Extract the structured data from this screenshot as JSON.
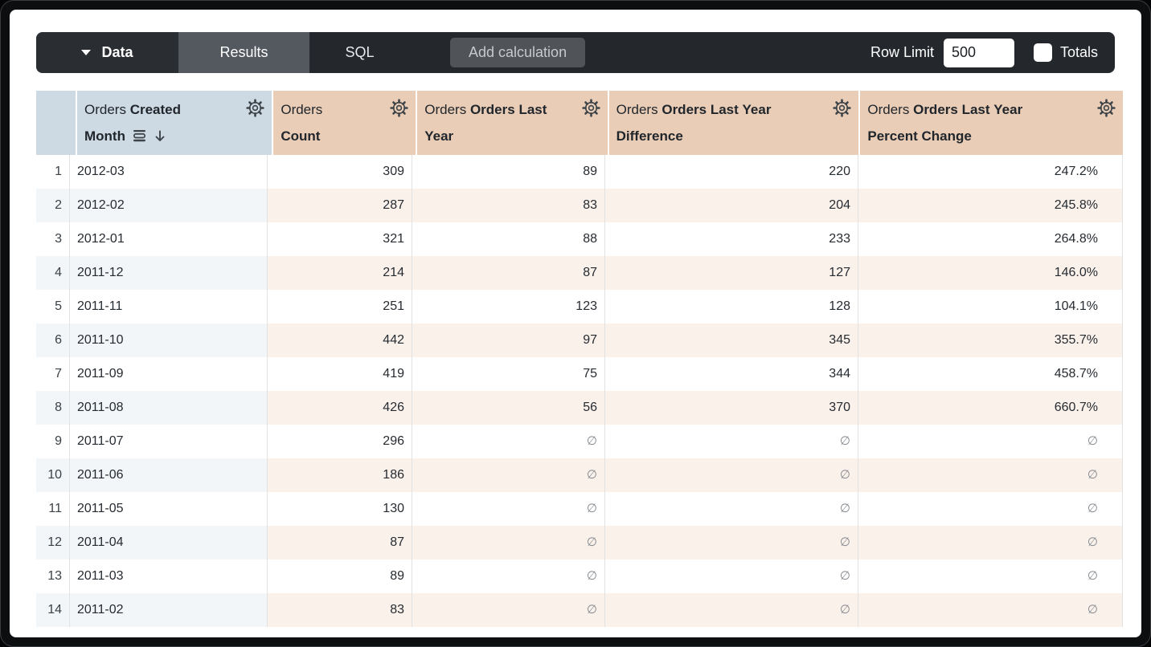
{
  "toolbar": {
    "data_label": "Data",
    "results_label": "Results",
    "sql_label": "SQL",
    "add_calculation_label": "Add calculation",
    "row_limit_label": "Row Limit",
    "row_limit_value": "500",
    "totals_label": "Totals",
    "totals_checked": false
  },
  "table": {
    "null_symbol": "∅",
    "columns": [
      {
        "prefix": "Orders",
        "name": "Created Month",
        "type": "dimension",
        "sort": "desc",
        "fill_enabled": true
      },
      {
        "prefix": "Orders",
        "name": "Count",
        "type": "measure"
      },
      {
        "prefix": "Orders",
        "name": "Orders Last Year",
        "type": "measure"
      },
      {
        "prefix": "Orders",
        "name": "Orders Last Year Difference",
        "type": "measure"
      },
      {
        "prefix": "Orders",
        "name": "Orders Last Year Percent Change",
        "type": "measure"
      }
    ],
    "rows": [
      {
        "index": "1",
        "month": "2012-03",
        "count": "309",
        "last_year": "89",
        "difference": "220",
        "percent_change": "247.2%"
      },
      {
        "index": "2",
        "month": "2012-02",
        "count": "287",
        "last_year": "83",
        "difference": "204",
        "percent_change": "245.8%"
      },
      {
        "index": "3",
        "month": "2012-01",
        "count": "321",
        "last_year": "88",
        "difference": "233",
        "percent_change": "264.8%"
      },
      {
        "index": "4",
        "month": "2011-12",
        "count": "214",
        "last_year": "87",
        "difference": "127",
        "percent_change": "146.0%"
      },
      {
        "index": "5",
        "month": "2011-11",
        "count": "251",
        "last_year": "123",
        "difference": "128",
        "percent_change": "104.1%"
      },
      {
        "index": "6",
        "month": "2011-10",
        "count": "442",
        "last_year": "97",
        "difference": "345",
        "percent_change": "355.7%"
      },
      {
        "index": "7",
        "month": "2011-09",
        "count": "419",
        "last_year": "75",
        "difference": "344",
        "percent_change": "458.7%"
      },
      {
        "index": "8",
        "month": "2011-08",
        "count": "426",
        "last_year": "56",
        "difference": "370",
        "percent_change": "660.7%"
      },
      {
        "index": "9",
        "month": "2011-07",
        "count": "296",
        "last_year": "∅",
        "difference": "∅",
        "percent_change": "∅"
      },
      {
        "index": "10",
        "month": "2011-06",
        "count": "186",
        "last_year": "∅",
        "difference": "∅",
        "percent_change": "∅"
      },
      {
        "index": "11",
        "month": "2011-05",
        "count": "130",
        "last_year": "∅",
        "difference": "∅",
        "percent_change": "∅"
      },
      {
        "index": "12",
        "month": "2011-04",
        "count": "87",
        "last_year": "∅",
        "difference": "∅",
        "percent_change": "∅"
      },
      {
        "index": "13",
        "month": "2011-03",
        "count": "89",
        "last_year": "∅",
        "difference": "∅",
        "percent_change": "∅"
      },
      {
        "index": "14",
        "month": "2011-02",
        "count": "83",
        "last_year": "∅",
        "difference": "∅",
        "percent_change": "∅"
      }
    ]
  },
  "colors": {
    "toolbar_bg": "#24272c",
    "data_segment_bg": "#2a2d32",
    "results_tab_bg": "#54585f",
    "add_calc_bg": "#505459",
    "add_calc_text": "#c6c9cc",
    "dimension_header_bg": "#cdd9e3",
    "measure_header_bg": "#e9cdb6",
    "dimension_stripe_bg": "#f3f6f9",
    "measure_stripe_bg": "#faf1eb",
    "header_text": "#21262c",
    "cell_text": "#262b31",
    "null_text": "#84898e",
    "grid_border": "#e2e2e2",
    "icon_color": "#3d4449"
  }
}
